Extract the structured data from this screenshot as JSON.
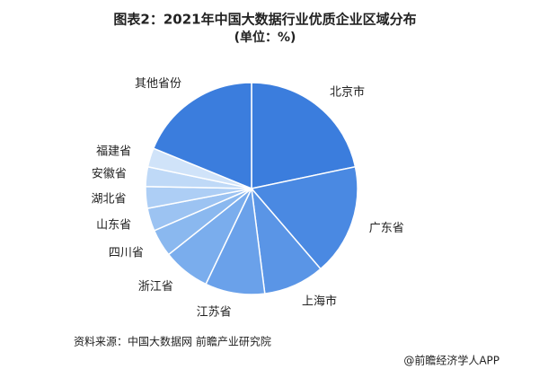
{
  "chart_data": {
    "type": "pie",
    "title": "图表2：2021年中国大数据行业优质企业区域分布",
    "subtitle": "(单位：%)",
    "categories": [
      "北京市",
      "广东省",
      "上海市",
      "江苏省",
      "浙江省",
      "四川省",
      "山东省",
      "湖北省",
      "安徽省",
      "福建省",
      "其他省份"
    ],
    "values": [
      21.7,
      17.0,
      9.3,
      9.1,
      7.2,
      4.2,
      3.5,
      3.3,
      3.0,
      2.9,
      18.8
    ],
    "colors": [
      "#3b7ddd",
      "#4a89e2",
      "#5a95e6",
      "#6aa1ea",
      "#7aaded",
      "#8ab8ef",
      "#9cc3f2",
      "#adcef5",
      "#bfd9f7",
      "#d0e3f9",
      "#3b7ddd"
    ],
    "source": "资料来源：中国大数据网 前瞻产业研究院",
    "watermark": "@前瞻经济学人APP"
  }
}
